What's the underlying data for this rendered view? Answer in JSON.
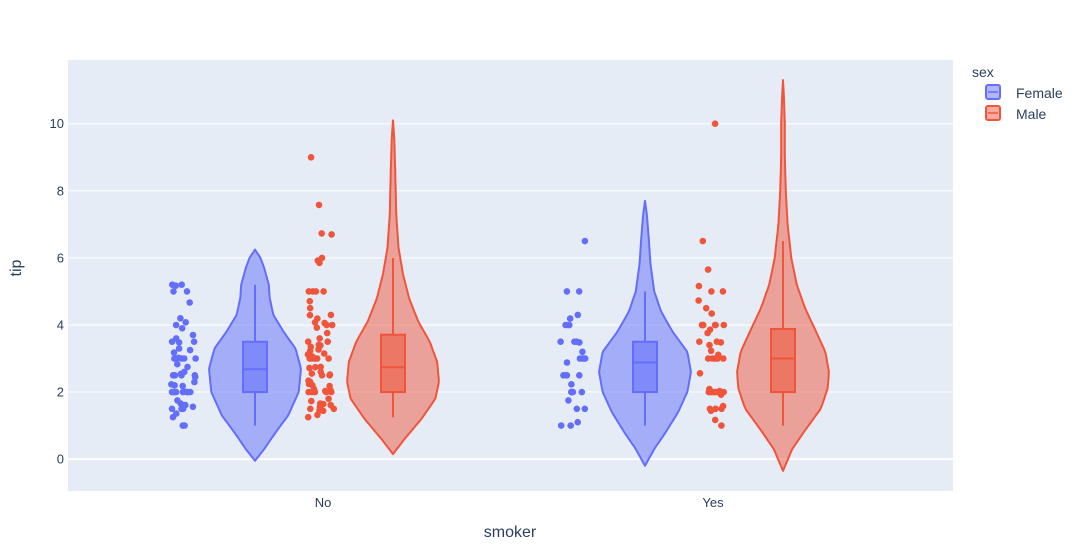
{
  "chart_data": {
    "type": "violin",
    "x_categories": [
      "No",
      "Yes"
    ],
    "xlabel": "smoker",
    "ylabel": "tip",
    "ylim": [
      -0.95,
      11.9
    ],
    "y_ticks": [
      0,
      2,
      4,
      6,
      8,
      10
    ],
    "grid": true,
    "legend_title": "sex",
    "legend_position": "top-right",
    "series": [
      {
        "name": "Female",
        "color": "#636efa",
        "groups": [
          {
            "category": "No",
            "box": {
              "q1": 2.0,
              "median": 2.68,
              "q3": 3.5,
              "whisker_low": 1.0,
              "whisker_high": 5.2
            },
            "violin_range": [
              -0.05,
              6.25
            ],
            "violin_profile": [
              [
                -0.05,
                0.0
              ],
              [
                0.3,
                0.2
              ],
              [
                0.8,
                0.45
              ],
              [
                1.3,
                0.72
              ],
              [
                2.0,
                0.95
              ],
              [
                2.7,
                1.0
              ],
              [
                3.3,
                0.88
              ],
              [
                3.8,
                0.62
              ],
              [
                4.3,
                0.4
              ],
              [
                4.8,
                0.32
              ],
              [
                5.2,
                0.3
              ],
              [
                5.7,
                0.2
              ],
              [
                6.0,
                0.12
              ],
              [
                6.25,
                0.0
              ]
            ],
            "points": [
              1.0,
              1.0,
              1.25,
              1.36,
              1.5,
              1.5,
              1.5,
              1.56,
              1.61,
              1.66,
              1.75,
              2.0,
              2.0,
              2.0,
              2.0,
              2.0,
              2.0,
              2.0,
              2.01,
              2.18,
              2.2,
              2.23,
              2.3,
              2.45,
              2.5,
              2.5,
              2.5,
              2.5,
              2.54,
              2.6,
              2.75,
              2.83,
              3.0,
              3.0,
              3.0,
              3.0,
              3.0,
              3.02,
              3.18,
              3.25,
              3.3,
              3.48,
              3.5,
              3.5,
              3.6,
              3.7,
              3.9,
              4.0,
              4.08,
              4.2,
              4.67,
              5.0,
              5.0,
              5.17,
              5.2,
              5.2
            ]
          },
          {
            "category": "Yes",
            "box": {
              "q1": 2.0,
              "median": 2.88,
              "q3": 3.5,
              "whisker_low": 1.0,
              "whisker_high": 5.0
            },
            "violin_range": [
              -0.2,
              7.7
            ],
            "violin_profile": [
              [
                -0.2,
                0.0
              ],
              [
                0.3,
                0.2
              ],
              [
                0.8,
                0.45
              ],
              [
                1.4,
                0.72
              ],
              [
                2.0,
                0.92
              ],
              [
                2.6,
                1.0
              ],
              [
                3.2,
                0.92
              ],
              [
                3.8,
                0.6
              ],
              [
                4.4,
                0.35
              ],
              [
                5.0,
                0.2
              ],
              [
                5.8,
                0.12
              ],
              [
                6.6,
                0.08
              ],
              [
                7.3,
                0.04
              ],
              [
                7.7,
                0.0
              ]
            ],
            "points": [
              1.0,
              1.0,
              1.1,
              1.5,
              1.5,
              1.75,
              2.0,
              2.0,
              2.0,
              2.0,
              2.0,
              2.23,
              2.5,
              2.5,
              2.5,
              2.5,
              2.88,
              3.0,
              3.0,
              3.0,
              3.0,
              3.2,
              3.48,
              3.5,
              3.5,
              3.5,
              4.0,
              4.0,
              4.0,
              4.19,
              4.3,
              5.0,
              5.0,
              6.5
            ]
          }
        ]
      },
      {
        "name": "Male",
        "color": "#ef553b",
        "groups": [
          {
            "category": "No",
            "box": {
              "q1": 2.0,
              "median": 2.74,
              "q3": 3.71,
              "whisker_low": 1.25,
              "whisker_high": 6.0
            },
            "violin_range": [
              0.15,
              10.1
            ],
            "violin_profile": [
              [
                0.15,
                0.0
              ],
              [
                0.6,
                0.25
              ],
              [
                1.2,
                0.62
              ],
              [
                1.8,
                0.92
              ],
              [
                2.3,
                1.0
              ],
              [
                2.9,
                0.96
              ],
              [
                3.5,
                0.8
              ],
              [
                4.1,
                0.55
              ],
              [
                4.8,
                0.35
              ],
              [
                5.5,
                0.22
              ],
              [
                6.3,
                0.12
              ],
              [
                7.3,
                0.07
              ],
              [
                8.5,
                0.05
              ],
              [
                9.5,
                0.03
              ],
              [
                10.1,
                0.0
              ]
            ],
            "points": [
              1.25,
              1.32,
              1.44,
              1.45,
              1.5,
              1.5,
              1.56,
              1.61,
              1.64,
              1.66,
              1.73,
              1.8,
              2.0,
              2.0,
              2.0,
              2.0,
              2.0,
              2.01,
              2.03,
              2.05,
              2.09,
              2.18,
              2.2,
              2.24,
              2.31,
              2.34,
              2.5,
              2.5,
              2.52,
              2.55,
              2.6,
              2.72,
              2.74,
              2.75,
              3.0,
              3.0,
              3.0,
              3.0,
              3.0,
              3.0,
              3.06,
              3.12,
              3.15,
              3.23,
              3.27,
              3.35,
              3.39,
              3.41,
              3.5,
              3.5,
              3.6,
              3.76,
              3.92,
              4.0,
              4.0,
              4.06,
              4.08,
              4.19,
              4.29,
              4.3,
              4.5,
              4.71,
              5.0,
              5.0,
              5.0,
              5.0,
              5.85,
              5.92,
              6.0,
              6.7,
              6.73,
              7.58,
              9.0
            ]
          },
          {
            "category": "Yes",
            "box": {
              "q1": 2.0,
              "median": 3.0,
              "q3": 3.88,
              "whisker_low": 1.0,
              "whisker_high": 6.5
            },
            "violin_range": [
              -0.35,
              11.3
            ],
            "violin_profile": [
              [
                -0.35,
                0.0
              ],
              [
                0.3,
                0.2
              ],
              [
                0.9,
                0.5
              ],
              [
                1.5,
                0.82
              ],
              [
                2.1,
                0.97
              ],
              [
                2.6,
                1.0
              ],
              [
                3.2,
                0.92
              ],
              [
                3.8,
                0.72
              ],
              [
                4.5,
                0.48
              ],
              [
                5.2,
                0.3
              ],
              [
                6.0,
                0.18
              ],
              [
                7.0,
                0.1
              ],
              [
                8.0,
                0.06
              ],
              [
                9.0,
                0.04
              ],
              [
                10.0,
                0.04
              ],
              [
                10.8,
                0.02
              ],
              [
                11.3,
                0.0
              ]
            ],
            "points": [
              1.0,
              1.17,
              1.44,
              1.5,
              1.5,
              1.5,
              1.58,
              1.92,
              2.0,
              2.0,
              2.0,
              2.0,
              2.0,
              2.0,
              2.0,
              2.0,
              2.03,
              2.09,
              2.56,
              3.0,
              3.0,
              3.0,
              3.0,
              3.0,
              3.11,
              3.23,
              3.4,
              3.48,
              3.5,
              3.5,
              3.76,
              3.86,
              4.0,
              4.0,
              4.0,
              4.0,
              4.0,
              4.0,
              4.34,
              4.5,
              4.73,
              5.0,
              5.0,
              5.16,
              5.65,
              6.5,
              10.0
            ]
          }
        ]
      }
    ]
  }
}
